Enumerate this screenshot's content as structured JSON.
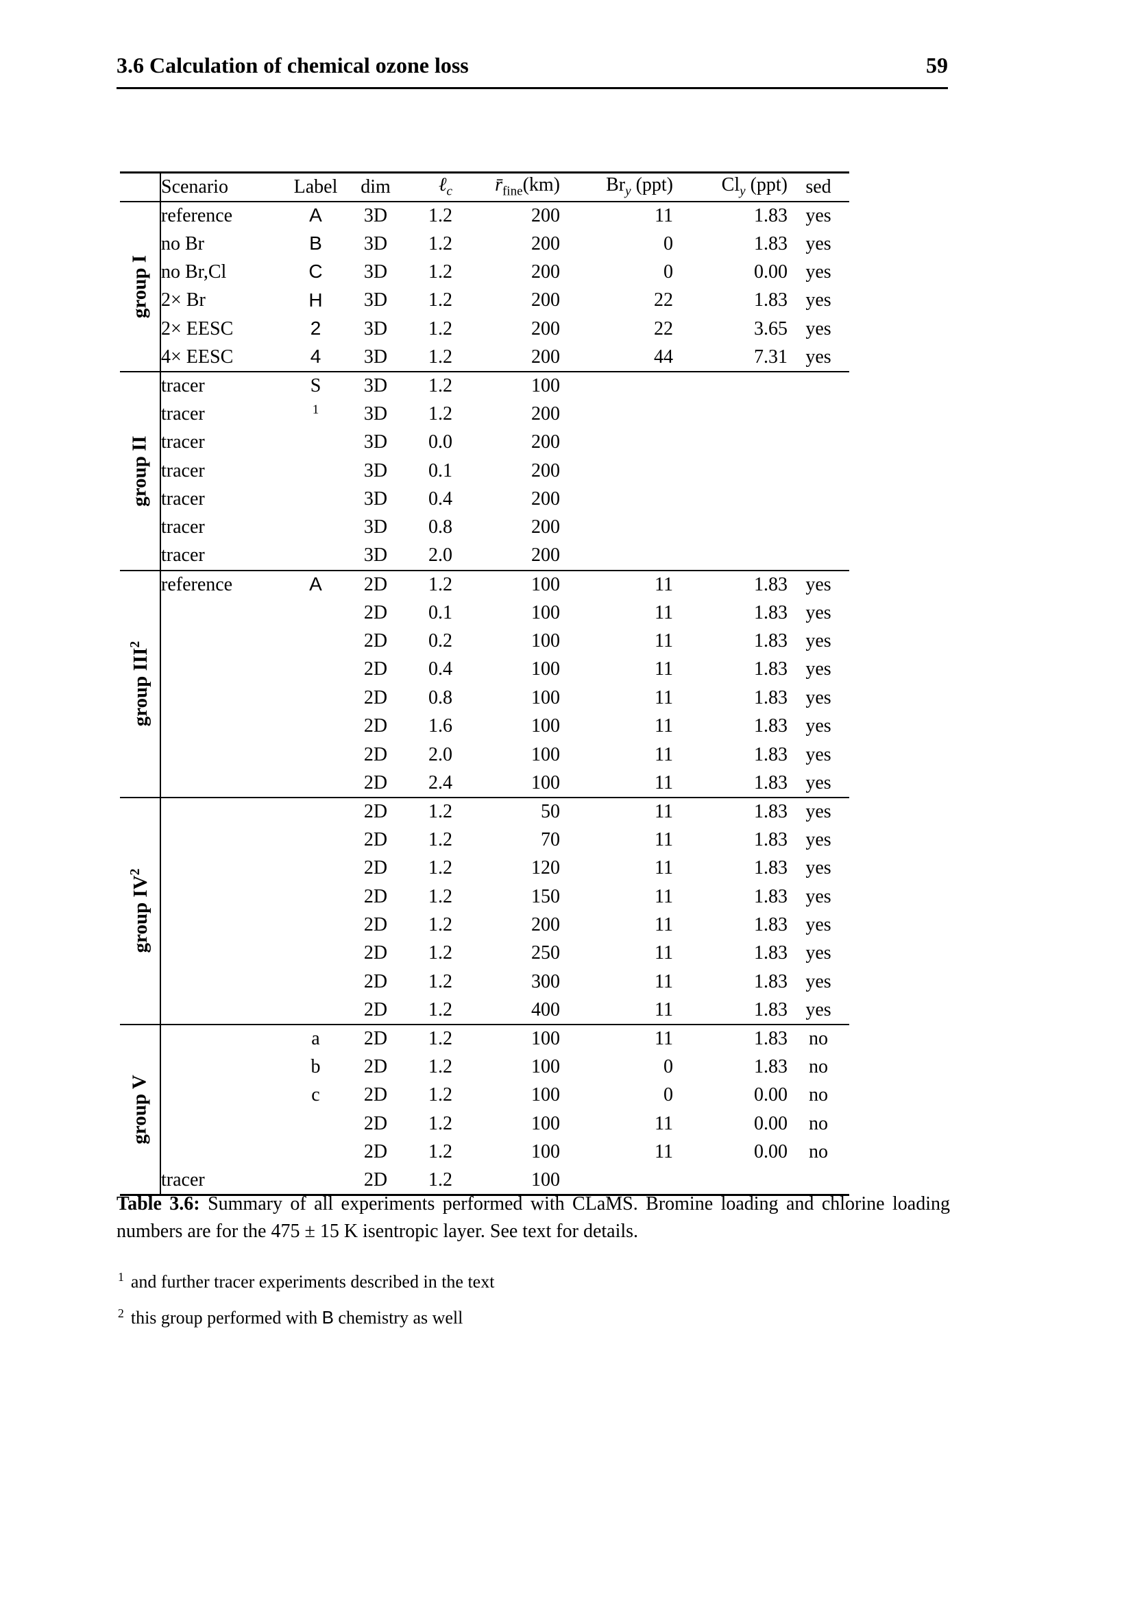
{
  "page": {
    "section_title": "3.6 Calculation of chemical ozone loss",
    "page_number": "59"
  },
  "table": {
    "columns": [
      {
        "key": "scenario",
        "segments": [
          {
            "t": "Scenario"
          }
        ]
      },
      {
        "key": "label",
        "segments": [
          {
            "t": "Label"
          }
        ]
      },
      {
        "key": "dim",
        "segments": [
          {
            "t": "dim"
          }
        ]
      },
      {
        "key": "lc",
        "segments": [
          {
            "t": "ℓ",
            "i": true
          },
          {
            "sub": "c",
            "i": true
          }
        ]
      },
      {
        "key": "rfine",
        "segments": [
          {
            "t": "r̄",
            "i": true
          },
          {
            "sub": "fine"
          },
          {
            "t": "(km)"
          }
        ]
      },
      {
        "key": "bry",
        "segments": [
          {
            "t": "Br"
          },
          {
            "sub": "y",
            "i": true
          },
          {
            "t": " (ppt)"
          }
        ]
      },
      {
        "key": "cly",
        "segments": [
          {
            "t": "Cl"
          },
          {
            "sub": "y",
            "i": true
          },
          {
            "t": " (ppt)"
          }
        ]
      },
      {
        "key": "sed",
        "segments": [
          {
            "t": "sed"
          }
        ]
      }
    ],
    "groups": [
      {
        "name": "group I",
        "sup": "",
        "rows": [
          {
            "scenario": "reference",
            "label": "A",
            "label_font": "sans",
            "dim": "3D",
            "lc": "1.2",
            "rfine": "200",
            "bry": "11",
            "cly": "1.83",
            "sed": "yes"
          },
          {
            "scenario": "no Br",
            "label": "B",
            "label_font": "sans",
            "dim": "3D",
            "lc": "1.2",
            "rfine": "200",
            "bry": "0",
            "cly": "1.83",
            "sed": "yes"
          },
          {
            "scenario": "no Br,Cl",
            "label": "C",
            "label_font": "sans",
            "dim": "3D",
            "lc": "1.2",
            "rfine": "200",
            "bry": "0",
            "cly": "0.00",
            "sed": "yes"
          },
          {
            "scenario": "2× Br",
            "label": "H",
            "label_font": "sans",
            "dim": "3D",
            "lc": "1.2",
            "rfine": "200",
            "bry": "22",
            "cly": "1.83",
            "sed": "yes"
          },
          {
            "scenario": "2× EESC",
            "label": "2",
            "label_font": "sans",
            "dim": "3D",
            "lc": "1.2",
            "rfine": "200",
            "bry": "22",
            "cly": "3.65",
            "sed": "yes"
          },
          {
            "scenario": "4× EESC",
            "label": "4",
            "label_font": "sans",
            "dim": "3D",
            "lc": "1.2",
            "rfine": "200",
            "bry": "44",
            "cly": "7.31",
            "sed": "yes"
          }
        ]
      },
      {
        "name": "group II",
        "sup": "",
        "rows": [
          {
            "scenario": "tracer",
            "label": "S",
            "label_font": "serif",
            "dim": "3D",
            "lc": "1.2",
            "rfine": "100",
            "bry": "",
            "cly": "",
            "sed": ""
          },
          {
            "scenario": "tracer",
            "label": "1",
            "label_sup": true,
            "label_font": "serif",
            "dim": "3D",
            "lc": "1.2",
            "rfine": "200",
            "bry": "",
            "cly": "",
            "sed": ""
          },
          {
            "scenario": "tracer",
            "label": "",
            "dim": "3D",
            "lc": "0.0",
            "rfine": "200",
            "bry": "",
            "cly": "",
            "sed": ""
          },
          {
            "scenario": "tracer",
            "label": "",
            "dim": "3D",
            "lc": "0.1",
            "rfine": "200",
            "bry": "",
            "cly": "",
            "sed": ""
          },
          {
            "scenario": "tracer",
            "label": "",
            "dim": "3D",
            "lc": "0.4",
            "rfine": "200",
            "bry": "",
            "cly": "",
            "sed": ""
          },
          {
            "scenario": "tracer",
            "label": "",
            "dim": "3D",
            "lc": "0.8",
            "rfine": "200",
            "bry": "",
            "cly": "",
            "sed": ""
          },
          {
            "scenario": "tracer",
            "label": "",
            "dim": "3D",
            "lc": "2.0",
            "rfine": "200",
            "bry": "",
            "cly": "",
            "sed": ""
          }
        ]
      },
      {
        "name": "group III",
        "sup": "2",
        "rows": [
          {
            "scenario": "reference",
            "label": "A",
            "label_font": "sans",
            "dim": "2D",
            "lc": "1.2",
            "rfine": "100",
            "bry": "11",
            "cly": "1.83",
            "sed": "yes"
          },
          {
            "scenario": "",
            "label": "",
            "dim": "2D",
            "lc": "0.1",
            "rfine": "100",
            "bry": "11",
            "cly": "1.83",
            "sed": "yes"
          },
          {
            "scenario": "",
            "label": "",
            "dim": "2D",
            "lc": "0.2",
            "rfine": "100",
            "bry": "11",
            "cly": "1.83",
            "sed": "yes"
          },
          {
            "scenario": "",
            "label": "",
            "dim": "2D",
            "lc": "0.4",
            "rfine": "100",
            "bry": "11",
            "cly": "1.83",
            "sed": "yes"
          },
          {
            "scenario": "",
            "label": "",
            "dim": "2D",
            "lc": "0.8",
            "rfine": "100",
            "bry": "11",
            "cly": "1.83",
            "sed": "yes"
          },
          {
            "scenario": "",
            "label": "",
            "dim": "2D",
            "lc": "1.6",
            "rfine": "100",
            "bry": "11",
            "cly": "1.83",
            "sed": "yes"
          },
          {
            "scenario": "",
            "label": "",
            "dim": "2D",
            "lc": "2.0",
            "rfine": "100",
            "bry": "11",
            "cly": "1.83",
            "sed": "yes"
          },
          {
            "scenario": "",
            "label": "",
            "dim": "2D",
            "lc": "2.4",
            "rfine": "100",
            "bry": "11",
            "cly": "1.83",
            "sed": "yes"
          }
        ]
      },
      {
        "name": "group IV",
        "sup": "2",
        "rows": [
          {
            "scenario": "",
            "label": "",
            "dim": "2D",
            "lc": "1.2",
            "rfine": "50",
            "bry": "11",
            "cly": "1.83",
            "sed": "yes"
          },
          {
            "scenario": "",
            "label": "",
            "dim": "2D",
            "lc": "1.2",
            "rfine": "70",
            "bry": "11",
            "cly": "1.83",
            "sed": "yes"
          },
          {
            "scenario": "",
            "label": "",
            "dim": "2D",
            "lc": "1.2",
            "rfine": "120",
            "bry": "11",
            "cly": "1.83",
            "sed": "yes"
          },
          {
            "scenario": "",
            "label": "",
            "dim": "2D",
            "lc": "1.2",
            "rfine": "150",
            "bry": "11",
            "cly": "1.83",
            "sed": "yes"
          },
          {
            "scenario": "",
            "label": "",
            "dim": "2D",
            "lc": "1.2",
            "rfine": "200",
            "bry": "11",
            "cly": "1.83",
            "sed": "yes"
          },
          {
            "scenario": "",
            "label": "",
            "dim": "2D",
            "lc": "1.2",
            "rfine": "250",
            "bry": "11",
            "cly": "1.83",
            "sed": "yes"
          },
          {
            "scenario": "",
            "label": "",
            "dim": "2D",
            "lc": "1.2",
            "rfine": "300",
            "bry": "11",
            "cly": "1.83",
            "sed": "yes"
          },
          {
            "scenario": "",
            "label": "",
            "dim": "2D",
            "lc": "1.2",
            "rfine": "400",
            "bry": "11",
            "cly": "1.83",
            "sed": "yes"
          }
        ]
      },
      {
        "name": "group V",
        "sup": "",
        "rows": [
          {
            "scenario": "",
            "label": "a",
            "label_font": "serif",
            "dim": "2D",
            "lc": "1.2",
            "rfine": "100",
            "bry": "11",
            "cly": "1.83",
            "sed": "no"
          },
          {
            "scenario": "",
            "label": "b",
            "label_font": "serif",
            "dim": "2D",
            "lc": "1.2",
            "rfine": "100",
            "bry": "0",
            "cly": "1.83",
            "sed": "no"
          },
          {
            "scenario": "",
            "label": "c",
            "label_font": "serif",
            "dim": "2D",
            "lc": "1.2",
            "rfine": "100",
            "bry": "0",
            "cly": "0.00",
            "sed": "no"
          },
          {
            "scenario": "",
            "label": "",
            "dim": "2D",
            "lc": "1.2",
            "rfine": "100",
            "bry": "11",
            "cly": "0.00",
            "sed": "no"
          },
          {
            "scenario": "",
            "label": "",
            "dim": "2D",
            "lc": "1.2",
            "rfine": "100",
            "bry": "11",
            "cly": "0.00",
            "sed": "no"
          },
          {
            "scenario": "tracer",
            "label": "",
            "dim": "2D",
            "lc": "1.2",
            "rfine": "100",
            "bry": "",
            "cly": "",
            "sed": ""
          }
        ]
      }
    ],
    "caption": {
      "title": "Table 3.6:",
      "text": " Summary of all experiments performed with CLaMS. Bromine loading and chlorine loading numbers are for the 475 ± 15 K isentropic layer. See text for details."
    }
  },
  "footnotes": [
    {
      "marker": "1",
      "segments": [
        {
          "t": "and further tracer experiments described in the text"
        }
      ]
    },
    {
      "marker": "2",
      "segments": [
        {
          "t": "this group performed with "
        },
        {
          "t": "B",
          "f": "sans"
        },
        {
          "t": " chemistry as well"
        }
      ]
    }
  ],
  "colors": {
    "text": "#000000",
    "background": "#ffffff",
    "rule": "#000000"
  }
}
